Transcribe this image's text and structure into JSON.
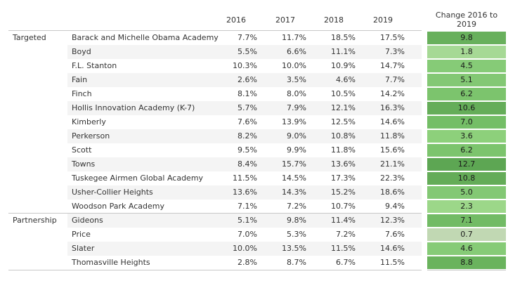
{
  "chart_data": {
    "type": "table",
    "title": "",
    "columns": [
      "",
      "",
      "2016",
      "2017",
      "2018",
      "2019",
      "Change 2016 to 2019"
    ],
    "groups": [
      {
        "name": "Targeted",
        "rows": [
          {
            "school": "Barack and Michelle Obama Academy",
            "values": [
              "7.7%",
              "11.7%",
              "18.5%",
              "17.5%"
            ],
            "change": "9.8",
            "color": "#68b05c"
          },
          {
            "school": "Boyd",
            "values": [
              "5.5%",
              "6.6%",
              "11.1%",
              "7.3%"
            ],
            "change": "1.8",
            "color": "#a6d995"
          },
          {
            "school": "F.L. Stanton",
            "values": [
              "10.3%",
              "10.0%",
              "10.9%",
              "14.7%"
            ],
            "change": "4.5",
            "color": "#86cb77"
          },
          {
            "school": "Fain",
            "values": [
              "2.6%",
              "3.5%",
              "4.6%",
              "7.7%"
            ],
            "change": "5.1",
            "color": "#83c874"
          },
          {
            "school": "Finch",
            "values": [
              "8.1%",
              "8.0%",
              "10.5%",
              "14.2%"
            ],
            "change": "6.2",
            "color": "#7cc46d"
          },
          {
            "school": "Hollis Innovation Academy (K-7)",
            "values": [
              "5.7%",
              "7.9%",
              "12.1%",
              "16.3%"
            ],
            "change": "10.6",
            "color": "#65ad59"
          },
          {
            "school": "Kimberly",
            "values": [
              "7.6%",
              "13.9%",
              "12.5%",
              "14.6%"
            ],
            "change": "7.0",
            "color": "#74be66"
          },
          {
            "school": "Perkerson",
            "values": [
              "8.2%",
              "9.0%",
              "10.8%",
              "11.8%"
            ],
            "change": "3.6",
            "color": "#8dd07b"
          },
          {
            "school": "Scott",
            "values": [
              "9.5%",
              "9.9%",
              "11.8%",
              "15.6%"
            ],
            "change": "6.2",
            "color": "#7cc46d"
          },
          {
            "school": "Towns",
            "values": [
              "8.4%",
              "15.7%",
              "13.6%",
              "21.1%"
            ],
            "change": "12.7",
            "color": "#5da653"
          },
          {
            "school": "Tuskegee Airmen Global Academy",
            "values": [
              "11.5%",
              "14.5%",
              "17.3%",
              "22.3%"
            ],
            "change": "10.8",
            "color": "#64ac58"
          },
          {
            "school": "Usher-Collier Heights",
            "values": [
              "13.6%",
              "14.3%",
              "15.2%",
              "18.6%"
            ],
            "change": "5.0",
            "color": "#83c874"
          },
          {
            "school": "Woodson Park Academy",
            "values": [
              "7.1%",
              "7.2%",
              "10.7%",
              "9.4%"
            ],
            "change": "2.3",
            "color": "#9cd789"
          }
        ]
      },
      {
        "name": "Partnership",
        "rows": [
          {
            "school": "Gideons",
            "values": [
              "5.1%",
              "9.8%",
              "11.4%",
              "12.3%"
            ],
            "change": "7.1",
            "color": "#72bb65"
          },
          {
            "school": "Price",
            "values": [
              "7.0%",
              "5.3%",
              "7.2%",
              "7.6%"
            ],
            "change": "0.7",
            "color": "#c1d8b3"
          },
          {
            "school": "Slater",
            "values": [
              "10.0%",
              "13.5%",
              "11.5%",
              "14.6%"
            ],
            "change": "4.6",
            "color": "#86cb77"
          },
          {
            "school": "Thomasville Heights",
            "values": [
              "2.8%",
              "8.7%",
              "6.7%",
              "11.5%"
            ],
            "change": "8.8",
            "color": "#6ab35d"
          }
        ]
      }
    ]
  }
}
